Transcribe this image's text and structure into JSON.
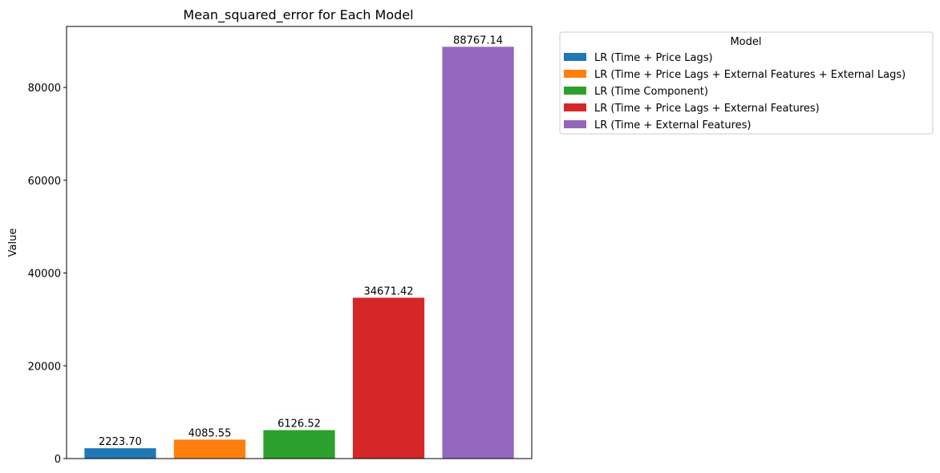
{
  "chart_data": {
    "type": "bar",
    "title": "Mean_squared_error for Each Model",
    "xlabel": "",
    "ylabel": "Value",
    "ylim": [
      0,
      93150
    ],
    "yticks": [
      0,
      20000,
      40000,
      60000,
      80000
    ],
    "grid": false,
    "legend": {
      "title": "Model",
      "placement": "outside-top-right"
    },
    "categories": [
      "LR (Time + Price Lags)",
      "LR (Time + Price Lags + External Features + External Lags)",
      "LR (Time Component)",
      "LR (Time + Price Lags + External Features)",
      "LR (Time + External Features)"
    ],
    "values": [
      2223.7,
      4085.55,
      6126.52,
      34671.42,
      88767.14
    ],
    "value_labels": [
      "2223.70",
      "4085.55",
      "6126.52",
      "34671.42",
      "88767.14"
    ],
    "colors": [
      "#1f77b4",
      "#ff7f0e",
      "#2ca02c",
      "#d62728",
      "#9467bd"
    ]
  }
}
